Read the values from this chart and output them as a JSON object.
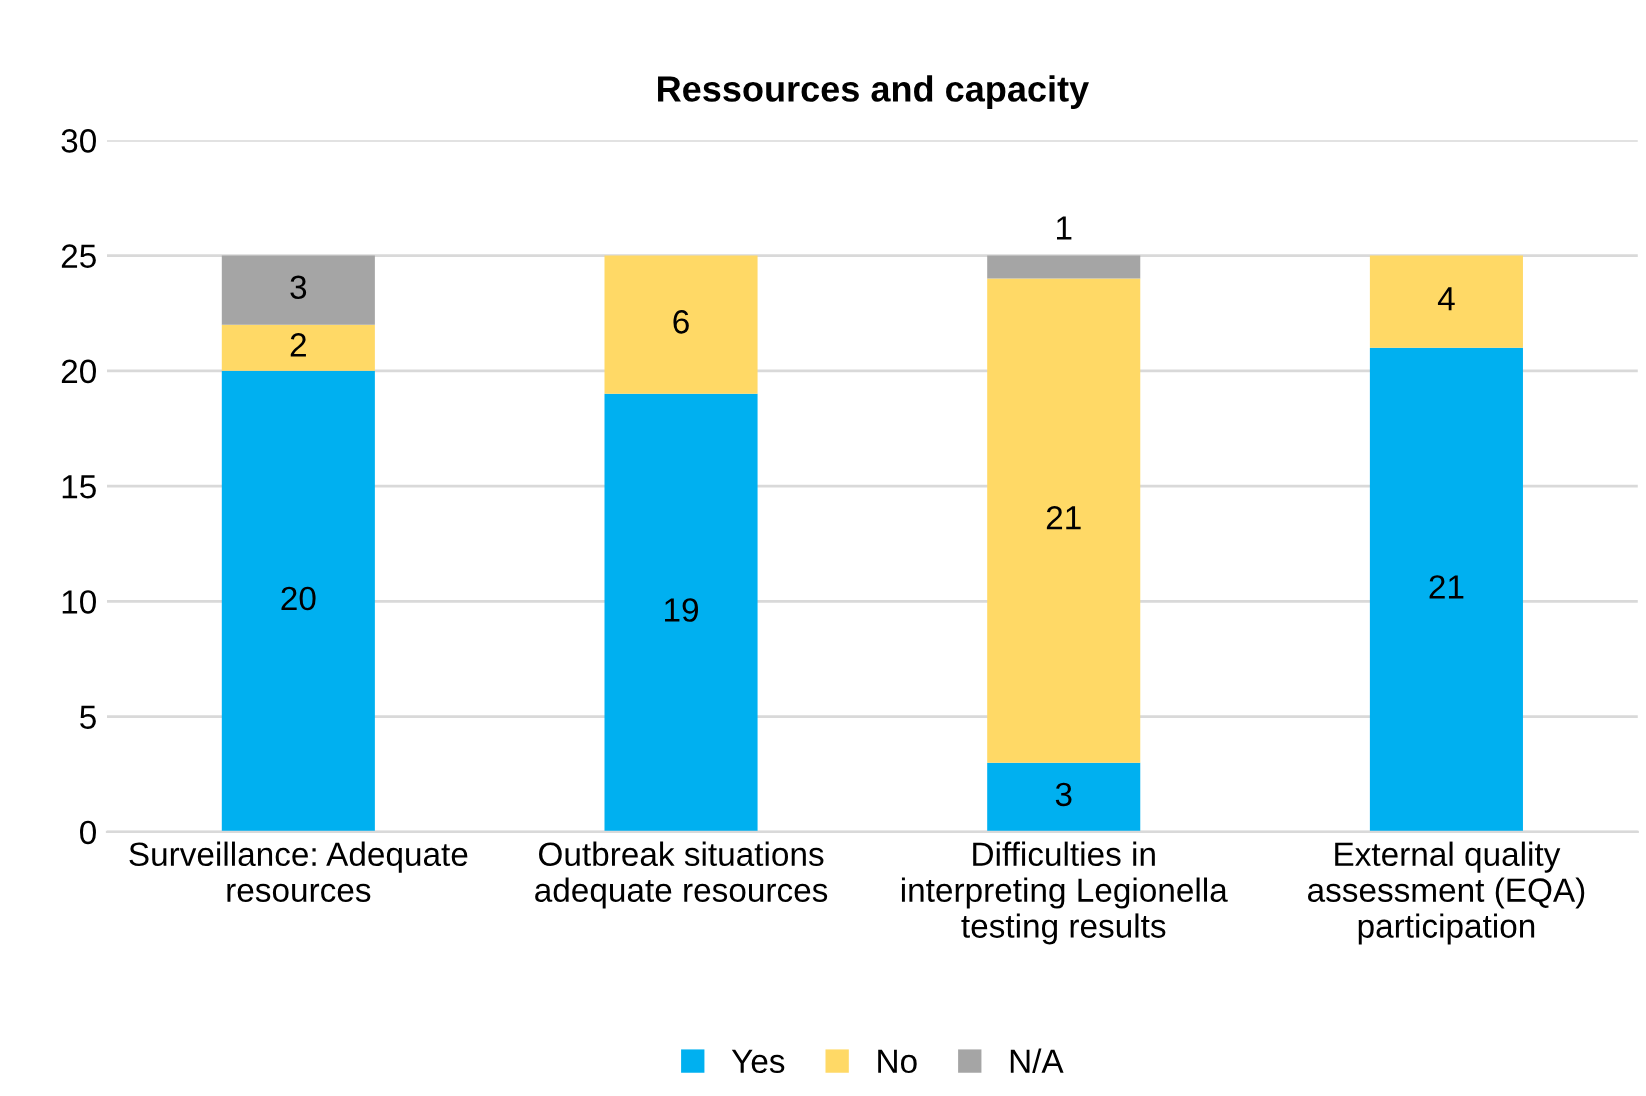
{
  "chart_data": {
    "type": "bar",
    "title": "Ressources and capacity",
    "categories": [
      "Surveillance: Adequate\nresources",
      "Outbreak situations\nadequate resources",
      "Difficulties in\ninterpreting Legionella\ntesting results",
      "External quality\nassessment (EQA)\nparticipation"
    ],
    "stacked": true,
    "series": [
      {
        "name": "Yes",
        "color": "#00b0f0",
        "values": [
          20,
          19,
          3,
          21
        ]
      },
      {
        "name": "No",
        "color": "#ffd966",
        "values": [
          2,
          6,
          21,
          4
        ]
      },
      {
        "name": "N/A",
        "color": "#a5a5a5",
        "values": [
          3,
          null,
          1,
          null
        ]
      }
    ],
    "ylim": [
      0,
      30
    ],
    "yticks": [
      0,
      5,
      10,
      15,
      20,
      25,
      30
    ],
    "grid": "y",
    "legend": "bottom",
    "data_labels": true
  }
}
